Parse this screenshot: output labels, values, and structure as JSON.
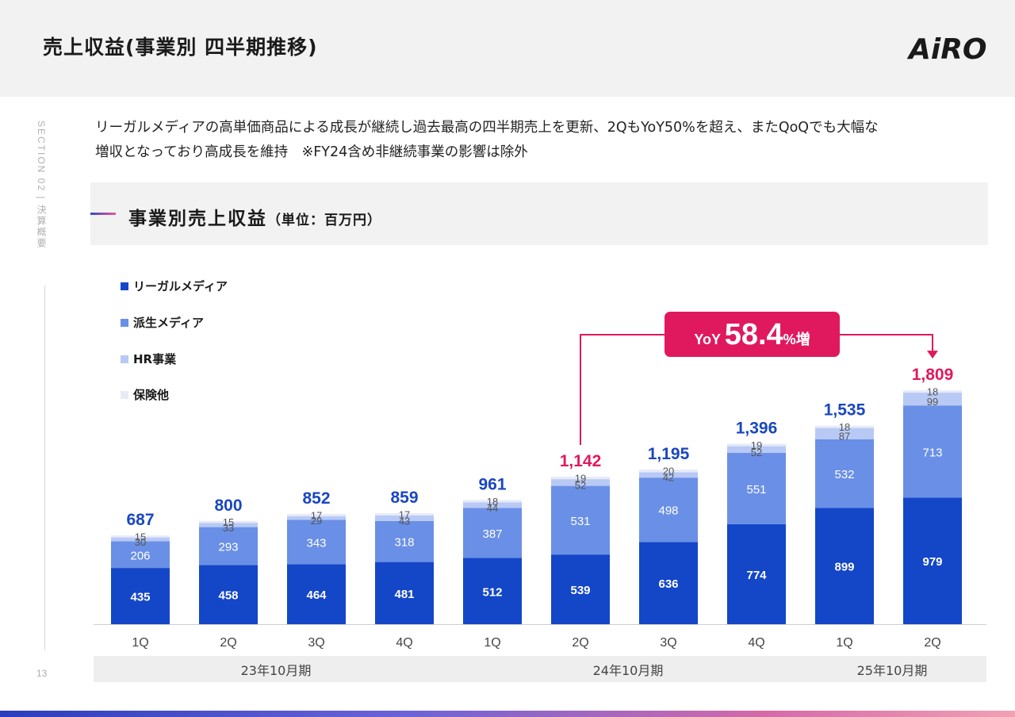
{
  "header": {
    "title": "売上収益(事業別 四半期推移)",
    "logo_text": "AiRO"
  },
  "sidebar": {
    "section_label": "SECTION 02 | 決算概要",
    "page_number": "13"
  },
  "description": {
    "line1": "リーガルメディアの高単価商品による成長が継続し過去最高の四半期売上を更新、2QもYoY50%を超え、またQoQでも大幅な",
    "line2": "増収となっており高成長を維持　※FY24含め非継続事業の影響は除外"
  },
  "subheader": {
    "title": "事業別売上収益",
    "unit": "（単位：百万円）"
  },
  "colors": {
    "legal_media": "#1446c8",
    "derived_media": "#6a8fe6",
    "hr": "#b8c9f5",
    "insurance": "#e7ebf8",
    "highlight": "#e0195e",
    "total_blue": "#1a47c0"
  },
  "legend": [
    {
      "label": "リーガルメディア",
      "color": "#1446c8"
    },
    {
      "label": "派生メディア",
      "color": "#6a8fe6"
    },
    {
      "label": "HR事業",
      "color": "#b8c9f5"
    },
    {
      "label": "保険他",
      "color": "#e7ebf8"
    }
  ],
  "chart_data": {
    "type": "bar",
    "stacked": true,
    "categories": [
      "1Q",
      "2Q",
      "3Q",
      "4Q",
      "1Q",
      "2Q",
      "3Q",
      "4Q",
      "1Q",
      "2Q"
    ],
    "series": [
      {
        "name": "リーガルメディア",
        "values": [
          435,
          458,
          464,
          481,
          512,
          539,
          636,
          774,
          899,
          979
        ]
      },
      {
        "name": "派生メディア",
        "values": [
          206,
          293,
          343,
          318,
          387,
          531,
          498,
          551,
          532,
          713
        ]
      },
      {
        "name": "HR事業",
        "values": [
          30,
          33,
          29,
          43,
          44,
          52,
          42,
          52,
          87,
          99
        ]
      },
      {
        "name": "保険他",
        "values": [
          15,
          15,
          17,
          17,
          18,
          19,
          20,
          19,
          18,
          18
        ]
      }
    ],
    "totals": [
      "687",
      "800",
      "852",
      "859",
      "961",
      "1,142",
      "1,195",
      "1,396",
      "1,535",
      "1,809"
    ],
    "highlight_totals": [
      5,
      9
    ],
    "periods": [
      {
        "label": "23年10月期",
        "start": 0,
        "end": 3
      },
      {
        "label": "24年10月期",
        "start": 4,
        "end": 7
      },
      {
        "label": "25年10月期",
        "start": 8,
        "end": 9
      }
    ],
    "annotation": {
      "prefix": "YoY",
      "value": "58.4",
      "suffix": "%増",
      "from": 5,
      "to": 9
    },
    "ylim": [
      0,
      1900
    ]
  }
}
